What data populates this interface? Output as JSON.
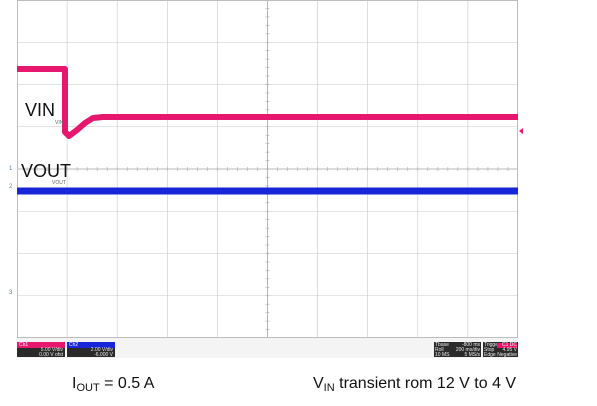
{
  "scope": {
    "colors": {
      "ch1": "#e8176e",
      "ch2": "#1626d8",
      "grid": "#c8c8c8",
      "background": "#ffffff"
    },
    "traces": {
      "vin_label": "VIN",
      "vin_sub": "VIN",
      "vout_label": "VOUT",
      "vout_sub": "VOUT",
      "ch1_marker": "1",
      "ch2_marker": "2",
      "ch3_marker": "3"
    },
    "channels": [
      {
        "name": "Ch1",
        "scale": "5.00 V/div",
        "offset": "0.00 V ofst"
      },
      {
        "name": "Ch2",
        "scale": "2.00 V/div",
        "offset": "-6.000 V"
      }
    ],
    "timebase": {
      "label": "Tbase",
      "position": "-800 ms",
      "mode": "Roll",
      "scale": "200 ms/div",
      "memory": "10 MS",
      "rate": "5 MS/s"
    },
    "trigger": {
      "label": "Trigger",
      "source": "C1 DC",
      "state": "Stop",
      "level": "4.95 V",
      "type": "Edge",
      "slope": "Negative"
    }
  },
  "caption": {
    "left_I": "I",
    "left_sub": "OUT",
    "left_rest": " = 0.5 A",
    "right_V": "V",
    "right_sub": "IN",
    "right_rest": " transient rom 12 V to 4 V"
  }
}
